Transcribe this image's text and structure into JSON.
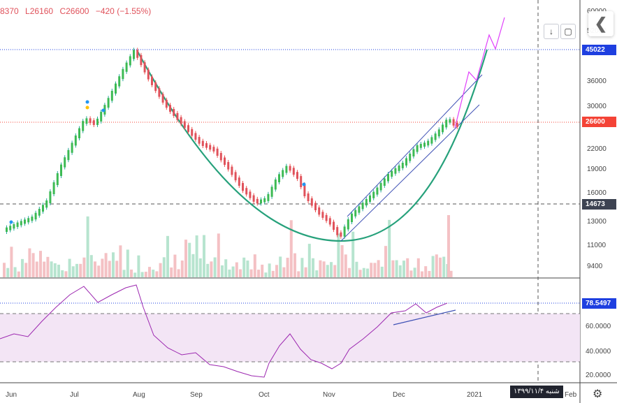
{
  "header": {
    "ohlc_parts": [
      "8370",
      "L26160",
      "C26600",
      "−420 (−1.55%)"
    ]
  },
  "buttons": {
    "scroll_down": "↓",
    "fullscreen": "▢",
    "nav_back": "❮"
  },
  "price_axis": {
    "ticks": [
      "60000",
      "52000",
      "45022",
      "36000",
      "30000",
      "26600",
      "22000",
      "19000",
      "16000",
      "14673",
      "13000",
      "11000",
      "9400"
    ],
    "current_label": "26600",
    "high_label": "45022",
    "level_label": "14673"
  },
  "rsi_axis": {
    "ticks": [
      "78.5497",
      "60.0000",
      "40.0000",
      "20.0000"
    ],
    "current_label": "78.5497"
  },
  "time_axis": {
    "labels": [
      "Jun",
      "Jul",
      "Aug",
      "Sep",
      "Oct",
      "Nov",
      "Dec",
      "2021",
      "Feb"
    ],
    "crosshair_date": "شنبه ۱۳۹۹/۱۱/۴"
  },
  "colors": {
    "up": "#26a69a",
    "down": "#ef5350",
    "up_body": "#3cba54",
    "down_body": "#e0525b",
    "curve": "#26a17b",
    "channel": "#3f51b5",
    "projection": "#e040fb",
    "rsi": "#9c27b0",
    "rsi_band": "#f3e5f5",
    "price_tag": "#f44336",
    "high_tag": "#1e3fe0",
    "level_tag": "#3d4352"
  },
  "icons": {
    "gear": "gear-icon",
    "scroll": "arrow-down-icon",
    "fullscreen": "fullscreen-icon",
    "nav": "chevron-left-icon"
  }
}
